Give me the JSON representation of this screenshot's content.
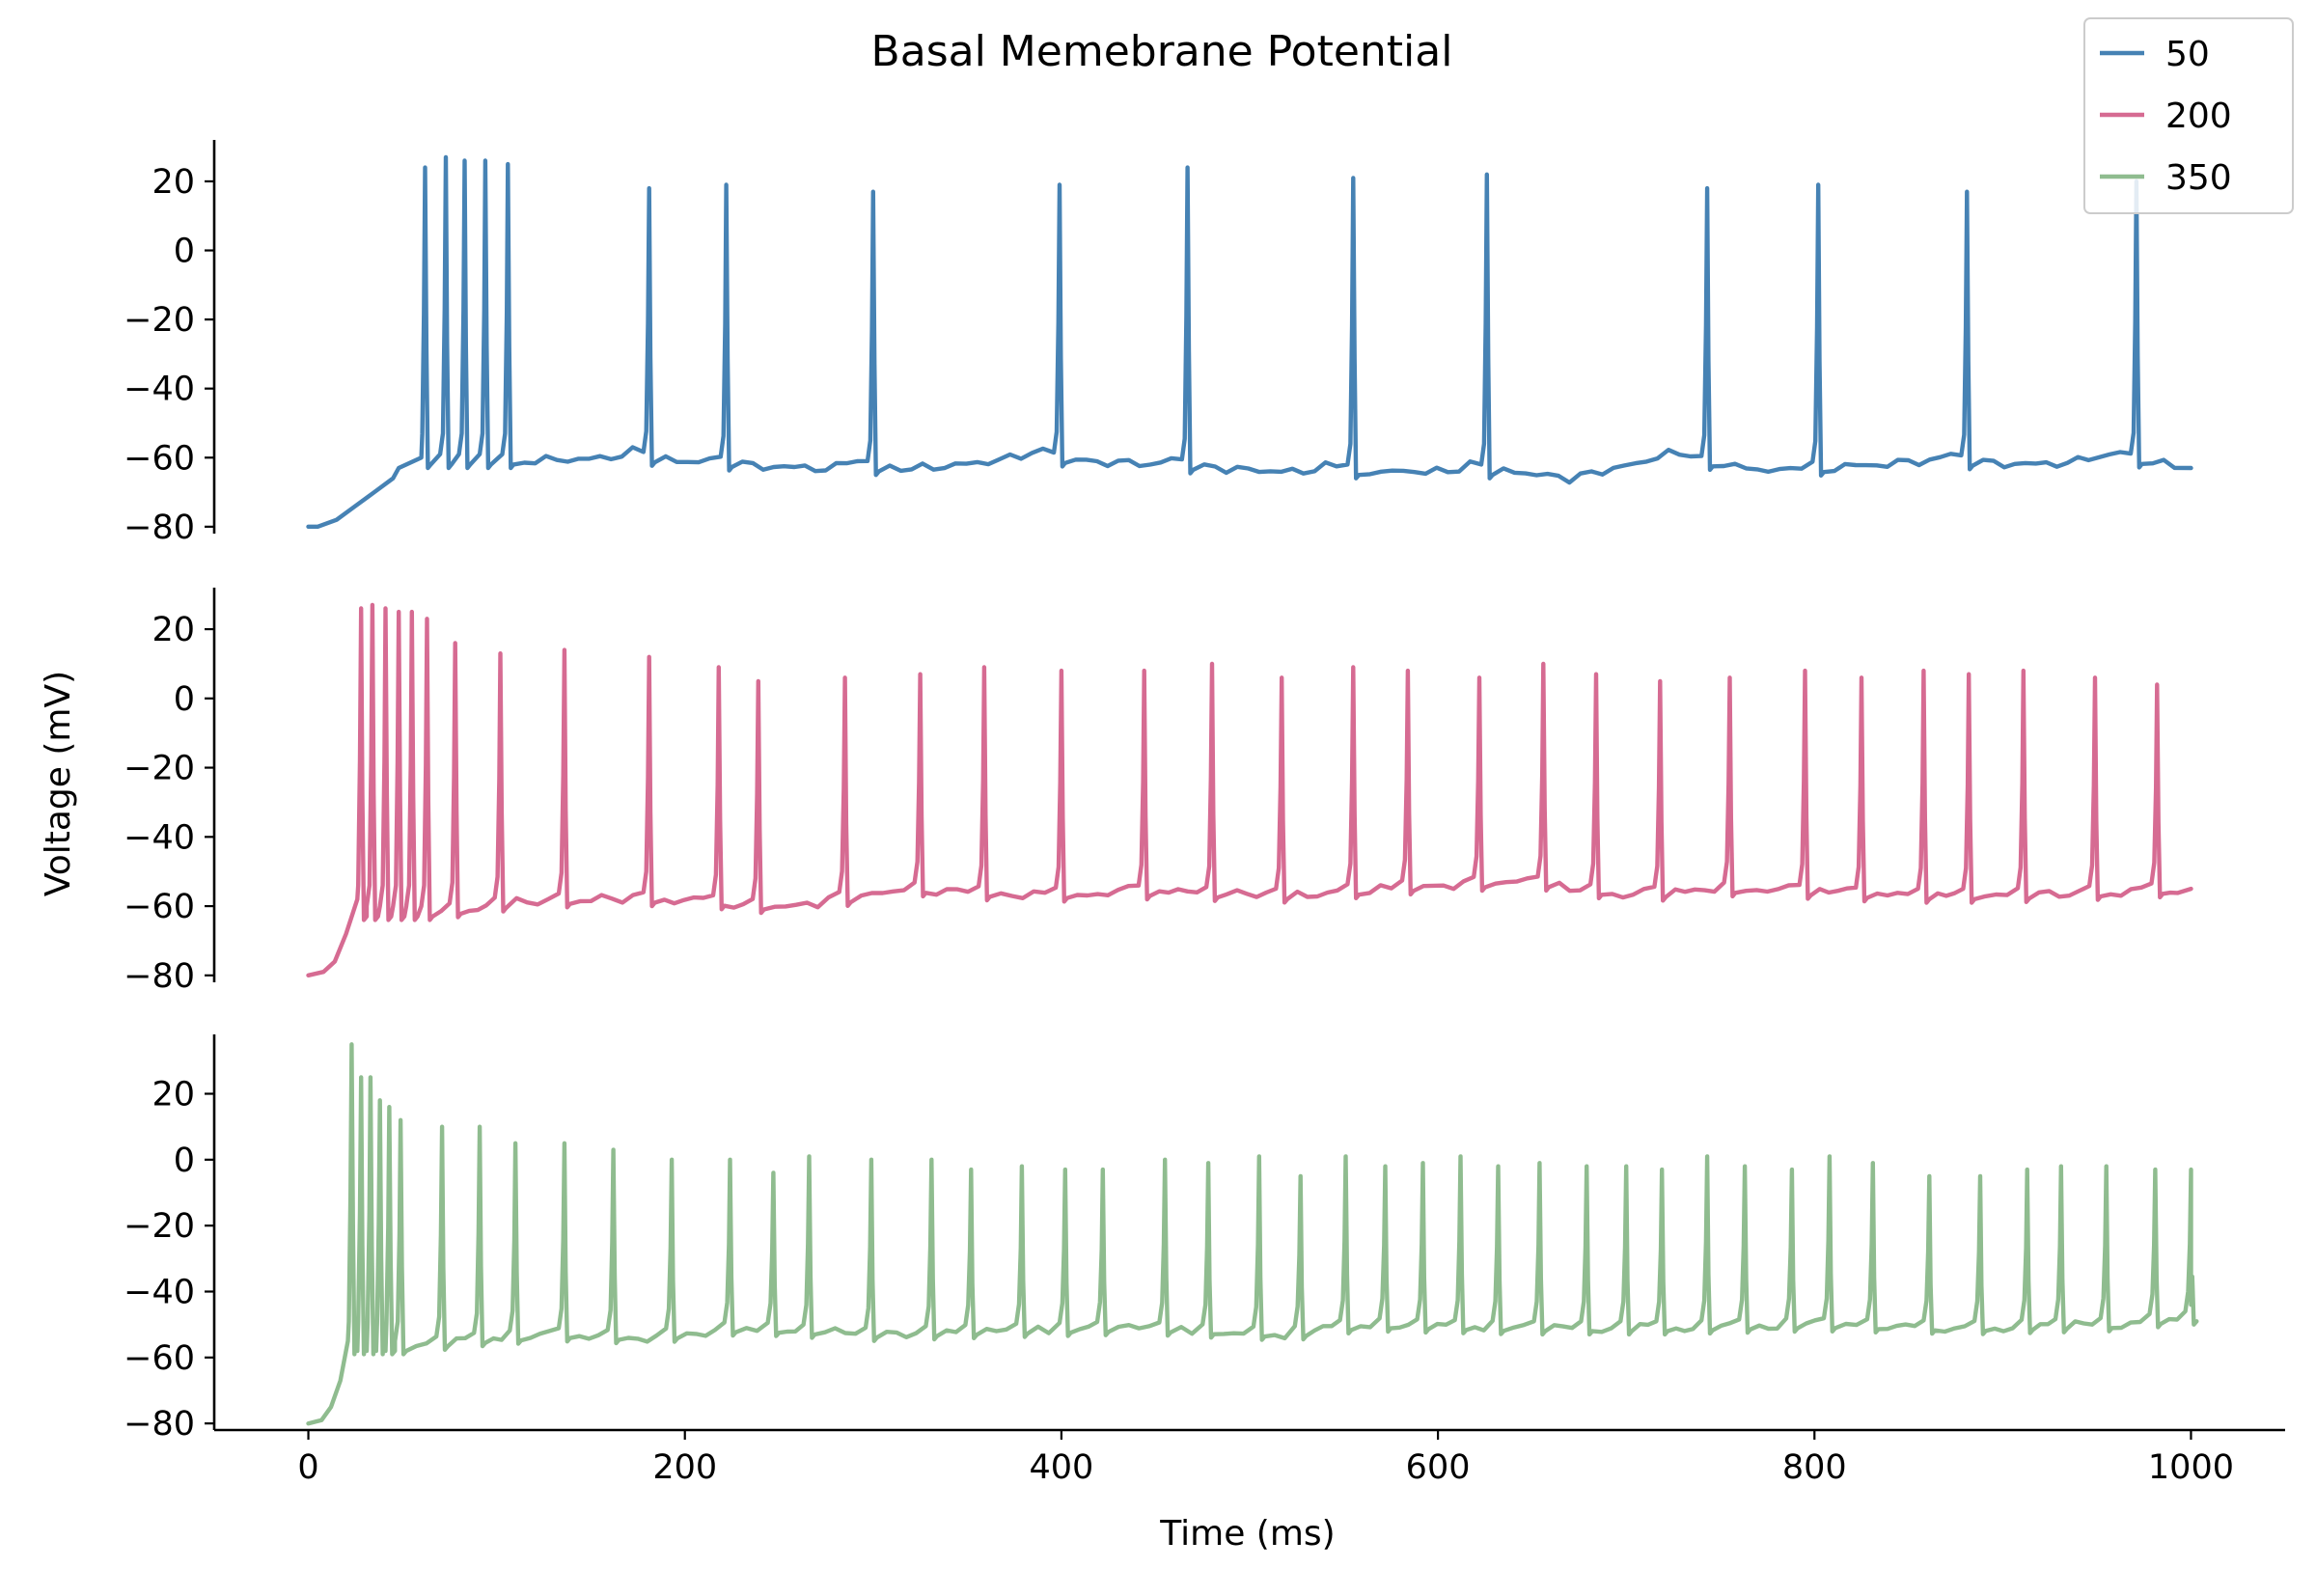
{
  "chart_data": {
    "type": "line",
    "title": "Basal Memebrane Potential",
    "xlabel": "Time (ms)",
    "ylabel": "Voltage (mV)",
    "xlim": [
      -50,
      1050
    ],
    "xticks": [
      0,
      200,
      400,
      600,
      800,
      1000
    ],
    "tick_format": "unicode-minus",
    "grid": false,
    "legend": {
      "placement": "top-right",
      "entries": [
        "50",
        "200",
        "350"
      ]
    },
    "series": [
      {
        "name": "50",
        "color": "#4682b4",
        "ylim": [
          -82,
          32
        ],
        "yticks": [
          -80,
          -60,
          -40,
          -20,
          0,
          20
        ],
        "rest": -80,
        "ramp": [
          [
            0,
            -80
          ],
          [
            5,
            -80
          ],
          [
            15,
            -78
          ],
          [
            25,
            -74
          ],
          [
            35,
            -70
          ],
          [
            45,
            -66
          ],
          [
            48,
            -63
          ],
          [
            60,
            -60
          ]
        ],
        "spike_times": [
          62,
          73,
          83,
          94,
          106,
          181,
          222,
          300,
          399,
          467,
          555,
          626,
          743,
          802,
          881,
          971
        ],
        "spike_peaks": [
          24,
          27,
          26,
          26,
          25,
          18,
          19,
          17,
          19,
          24,
          21,
          22,
          18,
          19,
          17,
          20
        ],
        "baseline": [
          [
            110,
            -61
          ],
          [
            170,
            -60
          ],
          [
            230,
            -62
          ],
          [
            260,
            -63
          ],
          [
            330,
            -63
          ],
          [
            380,
            -60
          ],
          [
            450,
            -62
          ],
          [
            515,
            -64
          ],
          [
            580,
            -64
          ],
          [
            640,
            -64
          ],
          [
            670,
            -66
          ],
          [
            720,
            -60
          ],
          [
            780,
            -64
          ],
          [
            860,
            -61
          ],
          [
            920,
            -62
          ],
          [
            960,
            -60
          ],
          [
            1000,
            -63
          ]
        ],
        "end": -63
      },
      {
        "name": "200",
        "color": "#d66b92",
        "ylim": [
          -82,
          32
        ],
        "yticks": [
          -80,
          -60,
          -40,
          -20,
          0,
          20
        ],
        "rest": -80,
        "ramp": [
          [
            0,
            -80
          ],
          [
            8,
            -79
          ],
          [
            14,
            -76
          ],
          [
            20,
            -68
          ],
          [
            26,
            -58
          ]
        ],
        "spike_times": [
          28,
          34,
          41,
          48,
          55,
          63,
          78,
          102,
          136,
          181,
          218,
          239,
          285,
          325,
          359,
          400,
          444,
          480,
          517,
          555,
          584,
          622,
          656,
          684,
          718,
          755,
          795,
          825,
          858,
          882,
          911,
          949,
          982
        ],
        "spike_peaks": [
          26,
          27,
          26,
          25,
          25,
          23,
          16,
          13,
          14,
          12,
          9,
          5,
          6,
          7,
          9,
          8,
          8,
          10,
          6,
          9,
          8,
          6,
          10,
          7,
          5,
          6,
          8,
          6,
          8,
          7,
          8,
          6,
          4
        ],
        "baseline": [
          [
            66,
            -62
          ],
          [
            110,
            -59
          ],
          [
            150,
            -58
          ],
          [
            200,
            -58
          ],
          [
            240,
            -60
          ],
          [
            260,
            -60
          ],
          [
            320,
            -55
          ],
          [
            380,
            -57
          ],
          [
            440,
            -56
          ],
          [
            520,
            -57
          ],
          [
            600,
            -54
          ],
          [
            650,
            -53
          ],
          [
            700,
            -57
          ],
          [
            760,
            -55
          ],
          [
            840,
            -57
          ],
          [
            900,
            -57
          ],
          [
            960,
            -56
          ],
          [
            1000,
            -55
          ]
        ],
        "end": -55
      },
      {
        "name": "350",
        "color": "#8fbc8f",
        "ylim": [
          -82,
          38
        ],
        "yticks": [
          -80,
          -60,
          -40,
          -20,
          0,
          20
        ],
        "rest": -80,
        "ramp": [
          [
            0,
            -80
          ],
          [
            7,
            -79
          ],
          [
            12,
            -75
          ],
          [
            17,
            -67
          ],
          [
            21,
            -55
          ]
        ],
        "spike_times": [
          23,
          28,
          33,
          38,
          43,
          49,
          71,
          91,
          110,
          136,
          162,
          193,
          224,
          247,
          266,
          299,
          331,
          352,
          379,
          402,
          422,
          455,
          478,
          505,
          527,
          551,
          572,
          592,
          612,
          632,
          654,
          679,
          700,
          719,
          743,
          763,
          788,
          808,
          831,
          861,
          888,
          913,
          931,
          955,
          981,
          1000
        ],
        "spike_peaks": [
          35,
          25,
          25,
          18,
          16,
          12,
          10,
          10,
          5,
          5,
          3,
          0,
          0,
          -4,
          1,
          0,
          0,
          -3,
          -2,
          -3,
          -3,
          0,
          -1,
          1,
          -5,
          1,
          -2,
          -1,
          1,
          -2,
          -1,
          -2,
          -2,
          -3,
          1,
          -2,
          -3,
          1,
          -1,
          -5,
          -5,
          -3,
          -2,
          -2,
          -3,
          -3
        ],
        "baseline": [
          [
            52,
            -57
          ],
          [
            80,
            -55
          ],
          [
            130,
            -53
          ],
          [
            180,
            -54
          ],
          [
            230,
            -51
          ],
          [
            300,
            -53
          ],
          [
            360,
            -52
          ],
          [
            440,
            -51
          ],
          [
            520,
            -53
          ],
          [
            560,
            -50
          ],
          [
            640,
            -51
          ],
          [
            720,
            -51
          ],
          [
            800,
            -50
          ],
          [
            880,
            -51
          ],
          [
            960,
            -50
          ],
          [
            995,
            -48
          ]
        ],
        "end": -44
      }
    ]
  }
}
